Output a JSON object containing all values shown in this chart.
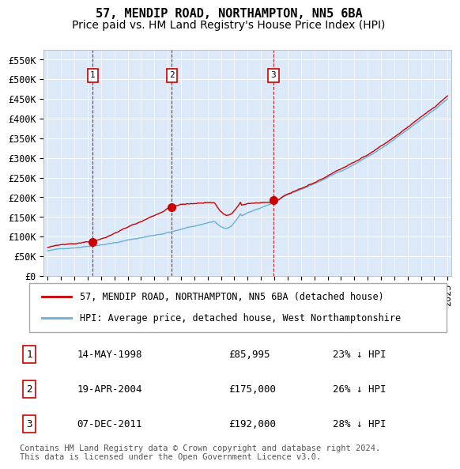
{
  "title": "57, MENDIP ROAD, NORTHAMPTON, NN5 6BA",
  "subtitle": "Price paid vs. HM Land Registry's House Price Index (HPI)",
  "xlabel": "",
  "ylabel": "",
  "ylim": [
    0,
    575000
  ],
  "yticks": [
    0,
    50000,
    100000,
    150000,
    200000,
    250000,
    300000,
    350000,
    400000,
    450000,
    500000,
    550000
  ],
  "ytick_labels": [
    "£0",
    "£50K",
    "£100K",
    "£150K",
    "£200K",
    "£250K",
    "£300K",
    "£350K",
    "£400K",
    "£450K",
    "£500K",
    "£550K"
  ],
  "background_color": "#dce9f8",
  "plot_bg_color": "#dce9f8",
  "hpi_color": "#6baed6",
  "price_color": "#cc0000",
  "vline_color": "#cc0000",
  "marker_color": "#cc0000",
  "sale1_date": 1998.37,
  "sale1_price": 85995,
  "sale1_label": "1",
  "sale2_date": 2004.3,
  "sale2_price": 175000,
  "sale2_label": "2",
  "sale3_date": 2011.93,
  "sale3_price": 192000,
  "sale3_label": "3",
  "legend_line1": "57, MENDIP ROAD, NORTHAMPTON, NN5 6BA (detached house)",
  "legend_line2": "HPI: Average price, detached house, West Northamptonshire",
  "table_rows": [
    {
      "num": "1",
      "date": "14-MAY-1998",
      "price": "£85,995",
      "note": "23% ↓ HPI"
    },
    {
      "num": "2",
      "date": "19-APR-2004",
      "price": "£175,000",
      "note": "26% ↓ HPI"
    },
    {
      "num": "3",
      "date": "07-DEC-2011",
      "price": "£192,000",
      "note": "28% ↓ HPI"
    }
  ],
  "footer": "Contains HM Land Registry data © Crown copyright and database right 2024.\nThis data is licensed under the Open Government Licence v3.0.",
  "title_fontsize": 11,
  "subtitle_fontsize": 10,
  "tick_fontsize": 8.5,
  "legend_fontsize": 8.5,
  "table_fontsize": 9,
  "footer_fontsize": 7.5
}
